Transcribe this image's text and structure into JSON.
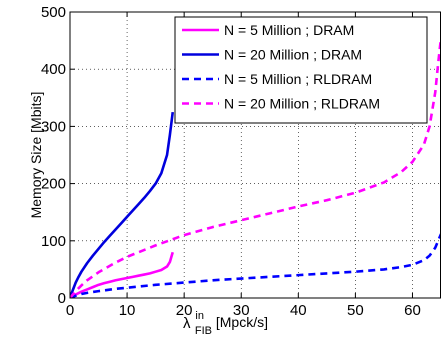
{
  "chart_data": {
    "type": "line",
    "xlabel": {
      "main": "λ",
      "sup": "in",
      "sub": "FIB",
      "unit": " [Mpck/s]"
    },
    "ylabel": "Memory Size [Mbits]",
    "xlim": [
      0,
      65
    ],
    "ylim": [
      0,
      500
    ],
    "xticks": [
      0,
      10,
      20,
      30,
      40,
      50,
      60
    ],
    "yticks": [
      0,
      100,
      200,
      300,
      400,
      500
    ],
    "grid": true,
    "legend_position": "top-right",
    "series": [
      {
        "name": "N = 5 Million ; DRAM",
        "color": "#ff00ff",
        "dash": "solid",
        "x": [
          0,
          0.5,
          1,
          2,
          3,
          4,
          5,
          6,
          7,
          8,
          9,
          10,
          11,
          12,
          13,
          14,
          15,
          16,
          17,
          17.5,
          18
        ],
        "y": [
          0,
          3,
          6,
          11,
          15,
          19,
          23,
          26,
          28.5,
          31,
          33,
          35,
          37,
          39,
          41,
          43,
          46,
          49,
          55,
          63,
          80
        ]
      },
      {
        "name": "N = 20 Million ; DRAM",
        "color": "#0000dd",
        "dash": "solid",
        "x": [
          0,
          0.5,
          1,
          1.5,
          2,
          3,
          4,
          5,
          6,
          7,
          8,
          9,
          10,
          11,
          12,
          13,
          14,
          15,
          16,
          17,
          17.5,
          18
        ],
        "y": [
          0,
          14,
          27,
          37,
          46,
          61,
          74,
          86,
          98,
          109,
          120,
          131,
          142,
          153,
          164,
          175,
          187,
          200,
          218,
          250,
          285,
          325
        ]
      },
      {
        "name": "N = 5 Million ; RLDRAM",
        "color": "#0000ff",
        "dash": "dashed",
        "x": [
          0,
          1,
          2,
          3,
          5,
          8,
          10,
          15,
          20,
          25,
          30,
          35,
          40,
          45,
          50,
          55,
          58,
          60,
          62,
          63,
          64,
          64.5,
          65
        ],
        "y": [
          0,
          4,
          7,
          9,
          12,
          16,
          18,
          23,
          27,
          31,
          34,
          37,
          40,
          43,
          46,
          50,
          54,
          58,
          66,
          74,
          88,
          100,
          112
        ]
      },
      {
        "name": "N = 20 Million ; RLDRAM",
        "color": "#ff00ff",
        "dash": "dashed",
        "x": [
          0,
          1,
          2,
          3,
          5,
          8,
          10,
          15,
          20,
          25,
          30,
          35,
          40,
          45,
          50,
          55,
          58,
          60,
          62,
          63,
          64,
          64.5,
          65
        ],
        "y": [
          0,
          12,
          22,
          31,
          45,
          62,
          72,
          92,
          110,
          124,
          136,
          148,
          160,
          171,
          184,
          202,
          220,
          238,
          268,
          300,
          360,
          410,
          455
        ]
      }
    ]
  }
}
